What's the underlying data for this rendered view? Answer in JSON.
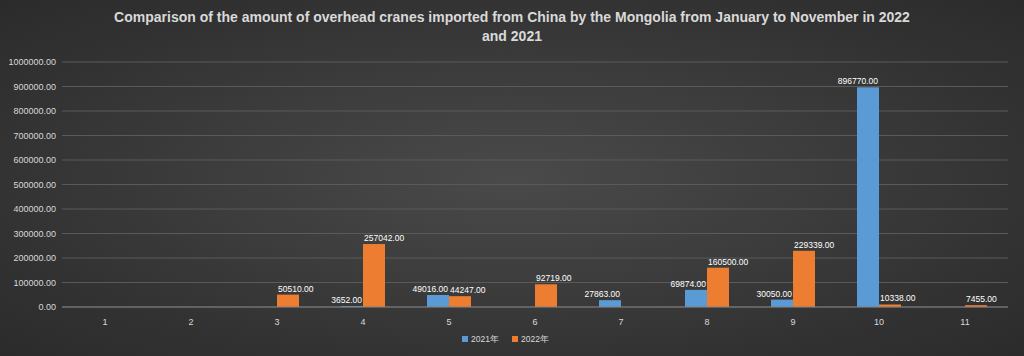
{
  "chart_data": {
    "type": "bar",
    "title": "Comparison of the amount of overhead cranes imported from China by the Mongolia from January to November in 2022 and 2021",
    "categories": [
      "1",
      "2",
      "3",
      "4",
      "5",
      "6",
      "7",
      "8",
      "9",
      "10",
      "11"
    ],
    "series": [
      {
        "name": "2021年",
        "color": "#5b9bd5",
        "values": [
          null,
          null,
          null,
          3652,
          49016,
          null,
          27863,
          69874,
          30050,
          896770,
          null
        ],
        "value_labels": [
          null,
          null,
          null,
          "3652.00",
          "49016.00",
          null,
          "27863.00",
          "69874.00",
          "30050.00",
          "896770.00",
          null
        ]
      },
      {
        "name": "2022年",
        "color": "#ed7d31",
        "values": [
          null,
          null,
          50510,
          257042,
          44247,
          92719,
          null,
          160500,
          229339,
          10338,
          7455
        ],
        "value_labels": [
          null,
          null,
          "50510.00",
          "257042.00",
          "44247.00",
          "92719.00",
          null,
          "160500.00",
          "229339.00",
          "10338.00",
          "7455.00"
        ]
      }
    ],
    "ylim": [
      0,
      1000000
    ],
    "yticks": [
      {
        "value": 0,
        "label": "0.00"
      },
      {
        "value": 100000,
        "label": "100000.00"
      },
      {
        "value": 200000,
        "label": "200000.00"
      },
      {
        "value": 300000,
        "label": "300000.00"
      },
      {
        "value": 400000,
        "label": "400000.00"
      },
      {
        "value": 500000,
        "label": "500000.00"
      },
      {
        "value": 600000,
        "label": "600000.00"
      },
      {
        "value": 700000,
        "label": "700000.00"
      },
      {
        "value": 800000,
        "label": "800000.00"
      },
      {
        "value": 900000,
        "label": "900000.00"
      },
      {
        "value": 1000000,
        "label": "1000000.00"
      }
    ],
    "grid": true,
    "data_labels": true,
    "legend": "bottom"
  }
}
